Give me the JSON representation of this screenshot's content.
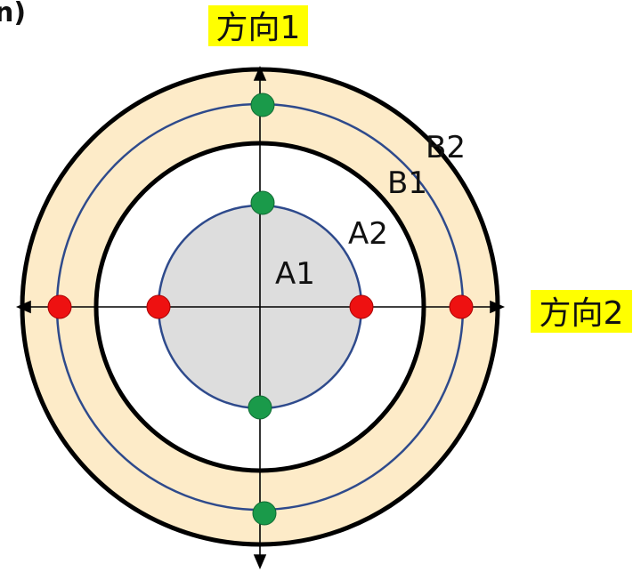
{
  "panel_label": "n)",
  "direction_labels": {
    "vertical": "方向1",
    "horizontal": "方向2"
  },
  "region_labels": {
    "a1": "A1",
    "a2": "A2",
    "b1": "B1",
    "b2": "B2"
  },
  "colors": {
    "outer_ring_fill": "#fdebc8",
    "inner_disk_fill": "#dddddd",
    "blue_circle": "#2e4a8c",
    "black_circle": "#000000",
    "highlight": "#ffff00",
    "red_dot": "#ee1111",
    "green_dot": "#1a9a4a"
  }
}
